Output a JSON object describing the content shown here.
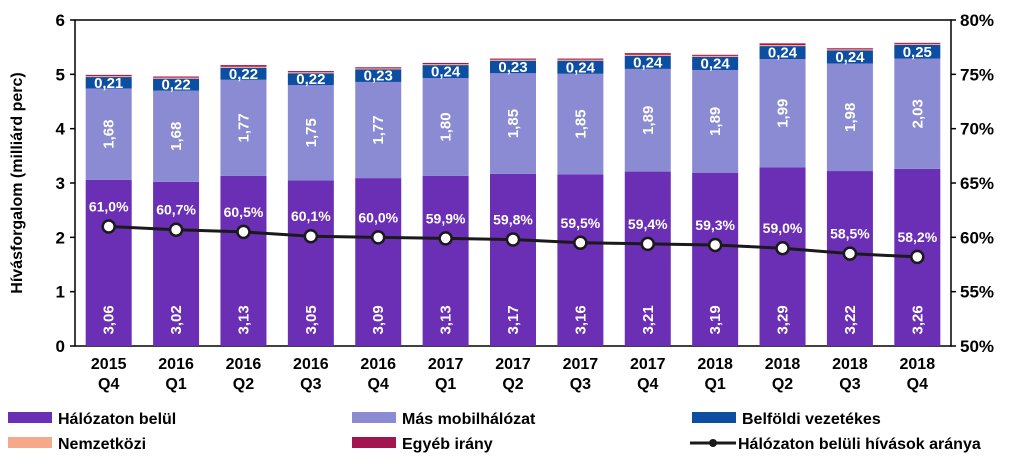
{
  "chart_data": {
    "type": "bar",
    "stacked": true,
    "ylabel": "Hívásforgalom (milliárd perc)",
    "ylim": [
      0,
      6
    ],
    "y_ticks": [
      "0",
      "1",
      "2",
      "3",
      "4",
      "5",
      "6"
    ],
    "y2lim": [
      50,
      80
    ],
    "y2_ticks": [
      "50%",
      "55%",
      "60%",
      "65%",
      "70%",
      "75%",
      "80%"
    ],
    "categories": [
      {
        "year": "2015",
        "quarter": "Q4"
      },
      {
        "year": "2016",
        "quarter": "Q1"
      },
      {
        "year": "2016",
        "quarter": "Q2"
      },
      {
        "year": "2016",
        "quarter": "Q3"
      },
      {
        "year": "2016",
        "quarter": "Q4"
      },
      {
        "year": "2017",
        "quarter": "Q1"
      },
      {
        "year": "2017",
        "quarter": "Q2"
      },
      {
        "year": "2017",
        "quarter": "Q3"
      },
      {
        "year": "2017",
        "quarter": "Q4"
      },
      {
        "year": "2018",
        "quarter": "Q1"
      },
      {
        "year": "2018",
        "quarter": "Q2"
      },
      {
        "year": "2018",
        "quarter": "Q3"
      },
      {
        "year": "2018",
        "quarter": "Q4"
      }
    ],
    "series": [
      {
        "name": "Hálózaton belül",
        "color": "#6a2fb5",
        "show_labels": true,
        "values": [
          3.06,
          3.02,
          3.13,
          3.05,
          3.09,
          3.13,
          3.17,
          3.16,
          3.21,
          3.19,
          3.29,
          3.22,
          3.26
        ],
        "labels": [
          "3,06",
          "3,02",
          "3,13",
          "3,05",
          "3,09",
          "3,13",
          "3,17",
          "3,16",
          "3,21",
          "3,19",
          "3,29",
          "3,22",
          "3,26"
        ]
      },
      {
        "name": "Más mobilhálózat",
        "color": "#8b8bd4",
        "show_labels": true,
        "values": [
          1.68,
          1.68,
          1.77,
          1.75,
          1.77,
          1.8,
          1.85,
          1.85,
          1.89,
          1.89,
          1.99,
          1.98,
          2.03
        ],
        "labels": [
          "1,68",
          "1,68",
          "1,77",
          "1,75",
          "1,77",
          "1,80",
          "1,85",
          "1,85",
          "1,89",
          "1,89",
          "1,99",
          "1,98",
          "2,03"
        ]
      },
      {
        "name": "Belföldi vezetékes",
        "color": "#0b4ea2",
        "show_labels": true,
        "values": [
          0.21,
          0.22,
          0.22,
          0.22,
          0.23,
          0.24,
          0.23,
          0.24,
          0.24,
          0.24,
          0.24,
          0.24,
          0.25
        ],
        "labels": [
          "0,21",
          "0,22",
          "0,22",
          "0,22",
          "0,23",
          "0,24",
          "0,23",
          "0,24",
          "0,24",
          "0,24",
          "0,24",
          "0,24",
          "0,25"
        ]
      },
      {
        "name": "Nemzetközi",
        "color": "#f5a98a",
        "show_labels": false,
        "values": [
          0.02,
          0.02,
          0.02,
          0.02,
          0.02,
          0.02,
          0.02,
          0.02,
          0.02,
          0.02,
          0.02,
          0.02,
          0.02
        ]
      },
      {
        "name": "Egyéb irány",
        "color": "#a3154f",
        "show_labels": false,
        "values": [
          0.02,
          0.02,
          0.03,
          0.02,
          0.02,
          0.02,
          0.02,
          0.02,
          0.03,
          0.02,
          0.03,
          0.02,
          0.02
        ]
      }
    ],
    "line_series": {
      "name": "Hálózaton belüli hívások aránya",
      "axis": "right",
      "color": "#1a1a1a",
      "values": [
        61.0,
        60.7,
        60.5,
        60.1,
        60.0,
        59.9,
        59.8,
        59.5,
        59.4,
        59.3,
        59.0,
        58.5,
        58.2
      ],
      "labels": [
        "61,0%",
        "60,7%",
        "60,5%",
        "60,1%",
        "60,0%",
        "59,9%",
        "59,8%",
        "59,5%",
        "59,4%",
        "59,3%",
        "59,0%",
        "58,5%",
        "58,2%"
      ]
    },
    "legend_position": "bottom"
  }
}
